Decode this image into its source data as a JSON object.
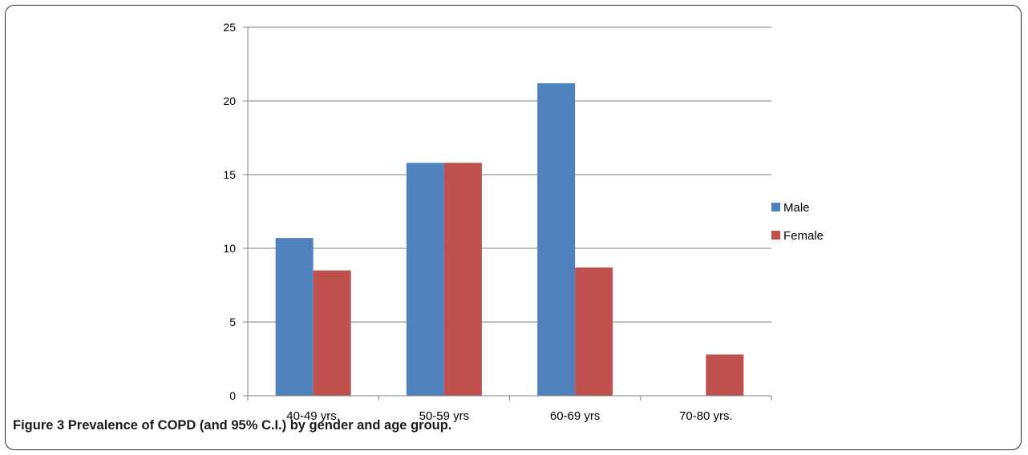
{
  "caption": {
    "label": "Figure 3",
    "text": "Prevalence of COPD (and 95% C.I.) by gender and age group."
  },
  "colors": {
    "male": "#4F81BD",
    "female": "#C0504D",
    "grid": "#808080"
  },
  "chart_data": {
    "type": "bar",
    "categories": [
      "40-49 yrs.",
      "50-59 yrs",
      "60-69 yrs",
      "70-80 yrs."
    ],
    "series": [
      {
        "name": "Male",
        "values": [
          10.7,
          15.8,
          21.2,
          0
        ]
      },
      {
        "name": "Female",
        "values": [
          8.5,
          15.8,
          8.7,
          2.8
        ]
      }
    ],
    "ylim": [
      0,
      25
    ],
    "yticks": [
      0,
      5,
      10,
      15,
      20,
      25
    ],
    "grid": true,
    "legend": "right",
    "title": "",
    "xlabel": "",
    "ylabel": ""
  }
}
